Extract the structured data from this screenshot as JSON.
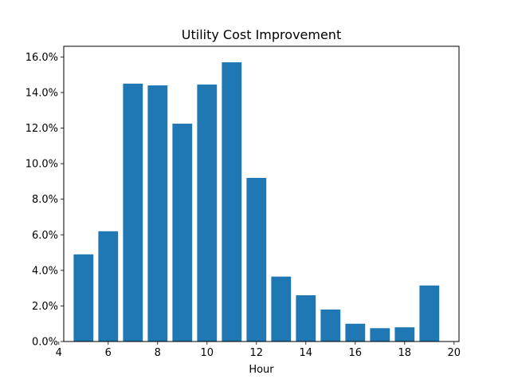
{
  "chart_data": {
    "type": "bar",
    "title": "Utility Cost Improvement",
    "xlabel": "Hour",
    "ylabel": "",
    "xlim": [
      4.2,
      20.2
    ],
    "ylim": [
      0,
      16.6
    ],
    "x_ticks": [
      4,
      6,
      8,
      10,
      12,
      14,
      16,
      18,
      20
    ],
    "y_ticks": [
      0,
      2,
      4,
      6,
      8,
      10,
      12,
      14,
      16
    ],
    "y_tick_format": "{v}.0%",
    "grid": false,
    "bar_color": "#1f77b4",
    "bar_width": 0.8,
    "x": [
      5,
      6,
      7,
      8,
      9,
      10,
      11,
      12,
      13,
      14,
      15,
      16,
      17,
      18,
      19
    ],
    "values": [
      4.9,
      6.2,
      14.5,
      14.4,
      12.25,
      14.45,
      15.7,
      9.2,
      3.65,
      2.6,
      1.8,
      1.0,
      0.75,
      0.8,
      3.15
    ]
  }
}
